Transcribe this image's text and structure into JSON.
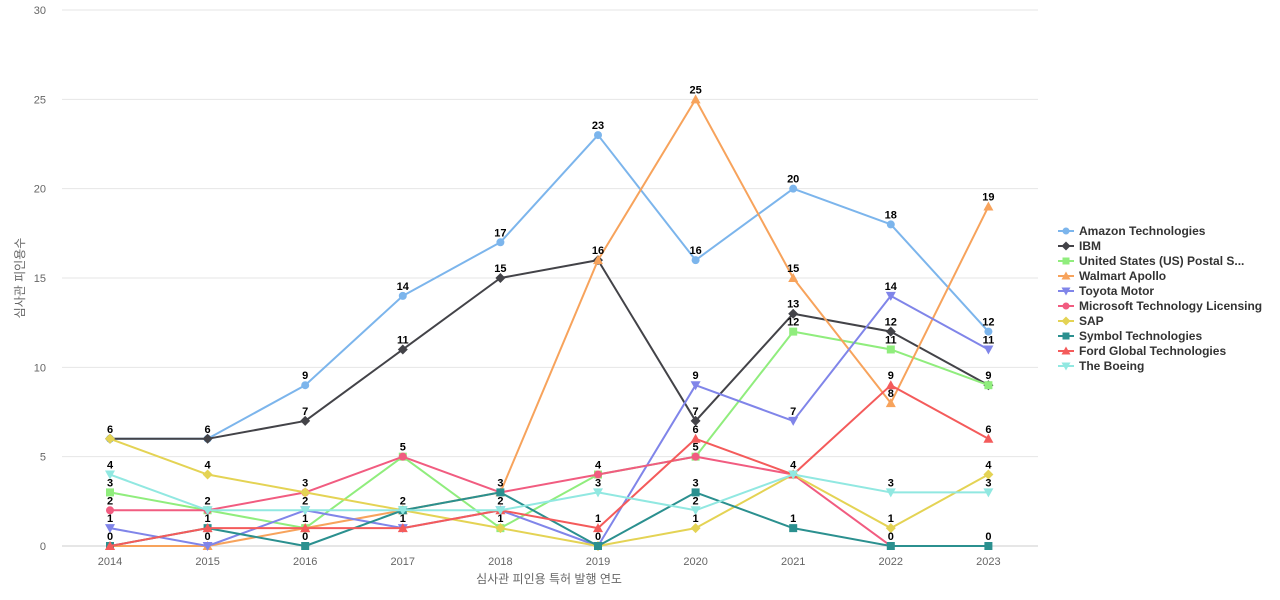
{
  "chart_data": {
    "type": "line",
    "xlabel": "심사관 피인용 특허 발행 연도",
    "ylabel": "심사관 피인용수",
    "ylim": [
      0,
      30
    ],
    "yticks": [
      0,
      5,
      10,
      15,
      20,
      25,
      30
    ],
    "x": [
      "2014",
      "2015",
      "2016",
      "2017",
      "2018",
      "2019",
      "2020",
      "2021",
      "2022",
      "2023"
    ],
    "grid": "horizontal",
    "legend_position": "right",
    "series": [
      {
        "name": "Amazon Technologies",
        "color": "#7cb5ec",
        "marker": "circle",
        "values": [
          6,
          6,
          9,
          14,
          17,
          23,
          16,
          20,
          18,
          12
        ]
      },
      {
        "name": "IBM",
        "color": "#434348",
        "marker": "diamond",
        "values": [
          6,
          6,
          7,
          11,
          15,
          16,
          7,
          13,
          12,
          9
        ]
      },
      {
        "name": "United States (US) Postal S...",
        "color": "#90ed7d",
        "marker": "square",
        "values": [
          3,
          2,
          1,
          5,
          1,
          4,
          5,
          12,
          11,
          9
        ]
      },
      {
        "name": "Walmart Apollo",
        "color": "#f7a35c",
        "marker": "triangle",
        "values": [
          0,
          0,
          1,
          2,
          3,
          16,
          25,
          15,
          8,
          19
        ]
      },
      {
        "name": "Toyota Motor",
        "color": "#8085e9",
        "marker": "triangle-down",
        "values": [
          1,
          0,
          2,
          1,
          2,
          0,
          9,
          7,
          14,
          11
        ]
      },
      {
        "name": "Microsoft Technology Licensing",
        "color": "#f15c80",
        "marker": "circle",
        "values": [
          2,
          2,
          3,
          5,
          3,
          4,
          5,
          4,
          0,
          null
        ]
      },
      {
        "name": "SAP",
        "color": "#e4d354",
        "marker": "diamond",
        "values": [
          6,
          4,
          3,
          2,
          1,
          0,
          1,
          4,
          1,
          4
        ]
      },
      {
        "name": "Symbol Technologies",
        "color": "#2b908f",
        "marker": "square",
        "values": [
          0,
          1,
          0,
          2,
          3,
          0,
          3,
          1,
          0,
          0
        ]
      },
      {
        "name": "Ford Global Technologies",
        "color": "#f45b5b",
        "marker": "triangle",
        "values": [
          0,
          1,
          1,
          1,
          2,
          1,
          6,
          4,
          9,
          6
        ]
      },
      {
        "name": "The Boeing",
        "color": "#91e8e1",
        "marker": "triangle-down",
        "values": [
          4,
          2,
          2,
          2,
          2,
          3,
          2,
          4,
          3,
          3
        ]
      }
    ],
    "data_labels": [
      {
        "x": "2014",
        "labels": [
          "6",
          "4",
          "3",
          "2",
          "1",
          "0"
        ]
      },
      {
        "x": "2015",
        "labels": [
          "6",
          "4",
          "2",
          "1",
          "0"
        ]
      },
      {
        "x": "2016",
        "labels": [
          "9",
          "7",
          "3",
          "2",
          "1",
          "0"
        ]
      },
      {
        "x": "2017",
        "labels": [
          "14",
          "11",
          "5",
          "2",
          "1"
        ]
      },
      {
        "x": "2018",
        "labels": [
          "17",
          "15",
          "3",
          "2",
          "1"
        ]
      },
      {
        "x": "2019",
        "labels": [
          "23",
          "16",
          "4",
          "3",
          "1",
          "0"
        ]
      },
      {
        "x": "2020",
        "labels": [
          "25",
          "16",
          "9",
          "7",
          "6",
          "5",
          "3",
          "2",
          "1"
        ]
      },
      {
        "x": "2021",
        "labels": [
          "20",
          "15",
          "13",
          "12",
          "7",
          "4",
          "1"
        ]
      },
      {
        "x": "2022",
        "labels": [
          "18",
          "14",
          "12",
          "11",
          "9",
          "8",
          "3",
          "1",
          "0"
        ]
      },
      {
        "x": "2023",
        "labels": [
          "19",
          "12",
          "11",
          "9",
          "6",
          "4",
          "3",
          "0"
        ]
      }
    ]
  }
}
